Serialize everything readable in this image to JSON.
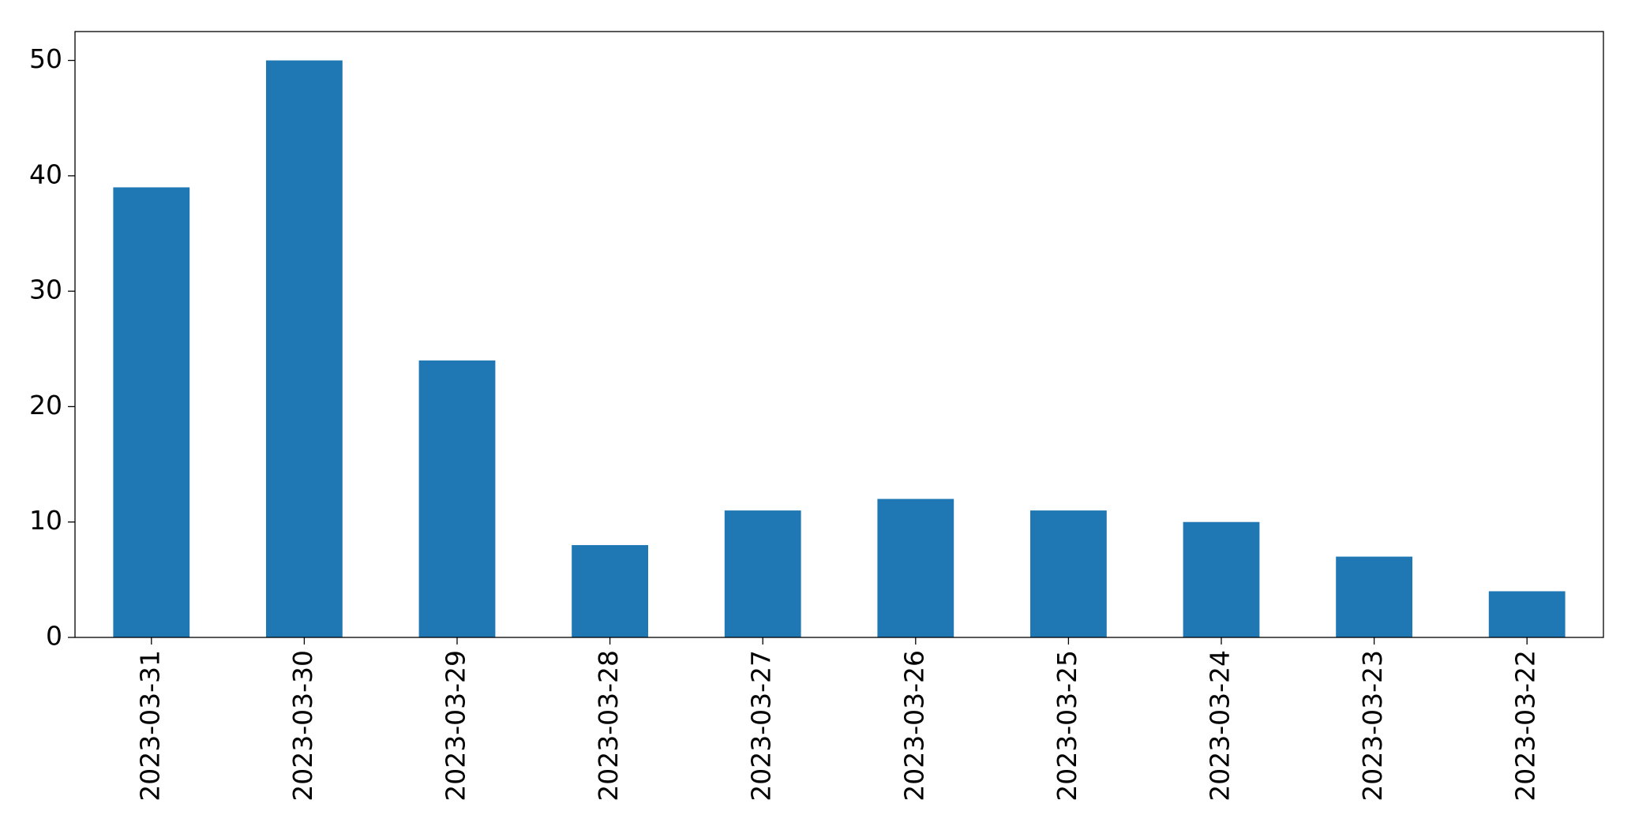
{
  "chart_data": {
    "type": "bar",
    "categories": [
      "2023-03-31",
      "2023-03-30",
      "2023-03-29",
      "2023-03-28",
      "2023-03-27",
      "2023-03-26",
      "2023-03-25",
      "2023-03-24",
      "2023-03-23",
      "2023-03-22"
    ],
    "values": [
      39,
      50,
      24,
      8,
      11,
      12,
      11,
      10,
      7,
      4
    ],
    "color": "#1f77b4",
    "ylim": [
      0,
      52.5
    ],
    "yticks": [
      0,
      10,
      20,
      30,
      40,
      50
    ],
    "grid": false
  }
}
